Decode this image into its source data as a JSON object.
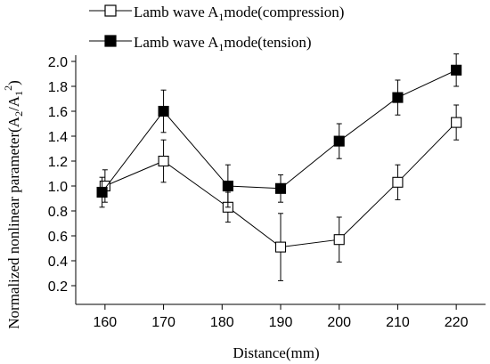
{
  "chart_data": {
    "type": "line",
    "xlabel": "Distance(mm)",
    "ylabel": "Normalized nonlinear parameter(A2/A1²)",
    "x": [
      160,
      170,
      180,
      190,
      200,
      210,
      220
    ],
    "xlim": [
      155,
      225
    ],
    "ylim": [
      0.05,
      2.05
    ],
    "xticks": [
      160,
      170,
      180,
      190,
      200,
      210,
      220
    ],
    "yticks": [
      0.2,
      0.4,
      0.6,
      0.8,
      1.0,
      1.2,
      1.4,
      1.6,
      1.8,
      2.0
    ],
    "xtick_labels": [
      "160",
      "170",
      "180",
      "190",
      "200",
      "210",
      "220"
    ],
    "ytick_labels": [
      "0.2",
      "0.4",
      "0.6",
      "0.8",
      "1.0",
      "1.2",
      "1.4",
      "1.6",
      "1.8",
      "2.0"
    ],
    "grid": false,
    "legend_position": "top",
    "series": [
      {
        "name": "Lamb wave A1mode(compression)",
        "marker": "open-square",
        "color": "#000000",
        "x": [
          160,
          170,
          181,
          190,
          200,
          210,
          220
        ],
        "values": [
          1.0,
          1.2,
          0.83,
          0.51,
          0.57,
          1.03,
          1.51
        ],
        "errors": [
          0.13,
          0.17,
          0.12,
          0.27,
          0.18,
          0.14,
          0.14
        ]
      },
      {
        "name": "Lamb wave A1mode(tension)",
        "marker": "filled-square",
        "color": "#000000",
        "x": [
          159.5,
          170,
          181,
          190,
          200,
          210,
          220
        ],
        "values": [
          0.95,
          1.6,
          1.0,
          0.98,
          1.36,
          1.71,
          1.93
        ],
        "errors": [
          0.12,
          0.17,
          0.17,
          0.11,
          0.14,
          0.14,
          0.13
        ]
      }
    ]
  }
}
